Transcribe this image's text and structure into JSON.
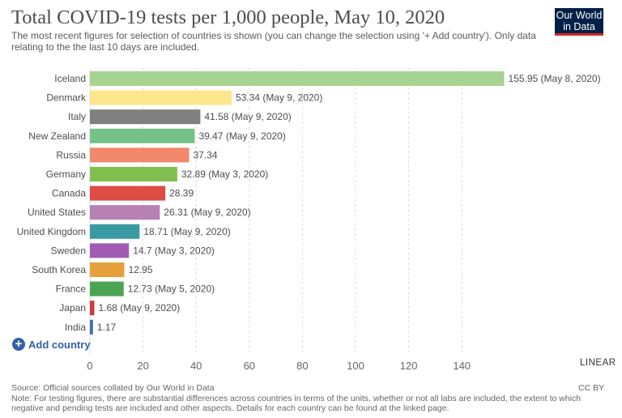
{
  "header": {
    "title": "Total COVID-19 tests per 1,000 people, May 10, 2020",
    "subtitle": "The most recent figures for selection of countries is shown (you can change the selection using '+ Add country'). Only data relating to the the last 10 days are included.",
    "logo_line1": "Our World",
    "logo_line2": "in Data",
    "logo_color": "#002147",
    "logo_accent": "#ce261e"
  },
  "chart_data": {
    "type": "bar",
    "orientation": "horizontal",
    "title": "Total COVID-19 tests per 1,000 people, May 10, 2020",
    "categories": [
      "Iceland",
      "Denmark",
      "Italy",
      "New Zealand",
      "Russia",
      "Germany",
      "Canada",
      "United States",
      "United Kingdom",
      "Sweden",
      "South Korea",
      "France",
      "Japan",
      "India"
    ],
    "values": [
      155.95,
      53.34,
      41.58,
      39.47,
      37.34,
      32.89,
      28.39,
      26.31,
      18.71,
      14.7,
      12.95,
      12.73,
      1.68,
      1.17
    ],
    "value_labels": [
      "155.95 (May 8, 2020)",
      "53.34 (May 9, 2020)",
      "41.58 (May 9, 2020)",
      "39.47 (May 9, 2020)",
      "37.34",
      "32.89 (May 3, 2020)",
      "28.39",
      "26.31 (May 9, 2020)",
      "18.71 (May 9, 2020)",
      "14.7 (May 3, 2020)",
      "12.95",
      "12.73 (May 5, 2020)",
      "1.68 (May 9, 2020)",
      "1.17"
    ],
    "colors": [
      "#a6d38f",
      "#fde68b",
      "#808080",
      "#76c18a",
      "#f1876b",
      "#80bf4d",
      "#de4c44",
      "#b781b5",
      "#3a9aa1",
      "#a25bb4",
      "#e5a03c",
      "#4ba451",
      "#cb3b3f",
      "#3d71b5"
    ],
    "xlim": [
      0,
      160
    ],
    "xticks": [
      0,
      20,
      40,
      60,
      80,
      100,
      120,
      140
    ],
    "grid": true,
    "scale": "LINEAR"
  },
  "controls": {
    "add_country_label": "Add country",
    "add_icon": "+",
    "scale_label": "LINEAR"
  },
  "footer": {
    "source": "Source: Official sources collated by Our World in Data",
    "license": "CC BY",
    "note": "Note: For testing figures, there are substantial differences across countries in terms of the units, whether or not all labs are included, the extent to which negative and pending tests are included and other aspects. Details for each country can be found at the linked page."
  }
}
